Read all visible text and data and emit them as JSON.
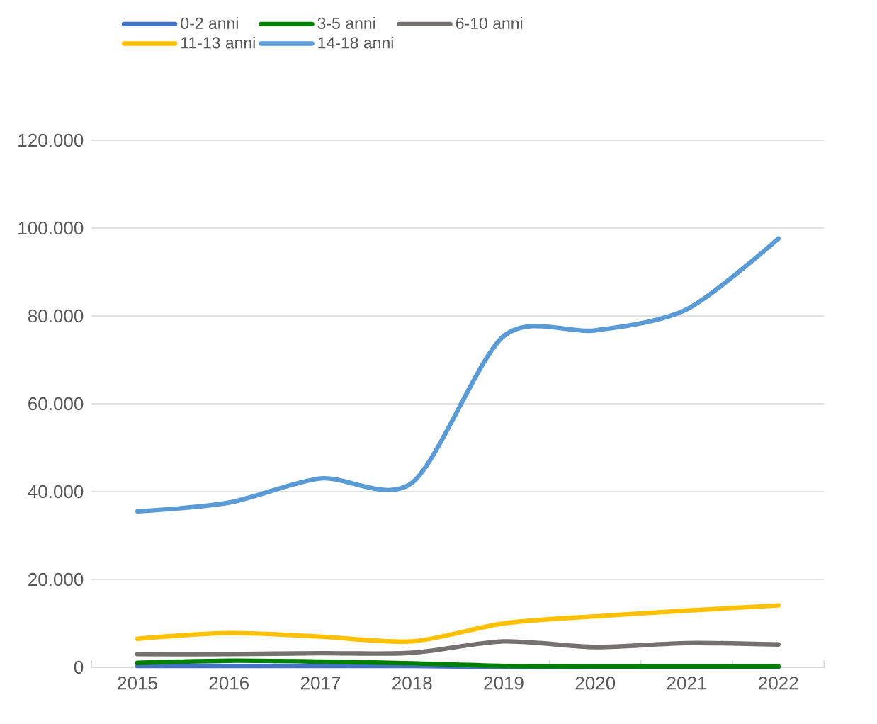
{
  "chart_data": {
    "type": "line",
    "categories": [
      "2015",
      "2016",
      "2017",
      "2018",
      "2019",
      "2020",
      "2021",
      "2022"
    ],
    "series": [
      {
        "name": "0-2 anni",
        "color": "#4472c4",
        "values": [
          300,
          300,
          300,
          300,
          100,
          100,
          100,
          100
        ]
      },
      {
        "name": "3-5 anni",
        "color": "#008000",
        "values": [
          1000,
          1500,
          1300,
          900,
          300,
          200,
          200,
          200
        ]
      },
      {
        "name": "6-10 anni",
        "color": "#767171",
        "values": [
          3000,
          3000,
          3200,
          3300,
          5900,
          4600,
          5500,
          5200
        ]
      },
      {
        "name": "11-13 anni",
        "color": "#ffc000",
        "values": [
          6500,
          7800,
          7000,
          5900,
          10000,
          11600,
          12900,
          14100
        ]
      },
      {
        "name": "14-18 anni",
        "color": "#5b9bd5",
        "values": [
          35500,
          37500,
          43000,
          42000,
          75400,
          76700,
          81500,
          97600
        ]
      }
    ],
    "ylim": [
      0,
      120000
    ],
    "yticks": [
      0,
      {
        "value": 20000,
        "label": "20.000"
      },
      {
        "value": 40000,
        "label": "40.000"
      },
      {
        "value": 60000,
        "label": "60.000"
      },
      {
        "value": 80000,
        "label": "80.000"
      },
      {
        "value": 100000,
        "label": "100.000"
      },
      {
        "value": 120000,
        "label": "120.000"
      }
    ],
    "grid": "y",
    "legend": "top",
    "marker": "none",
    "line_style": "solid"
  }
}
